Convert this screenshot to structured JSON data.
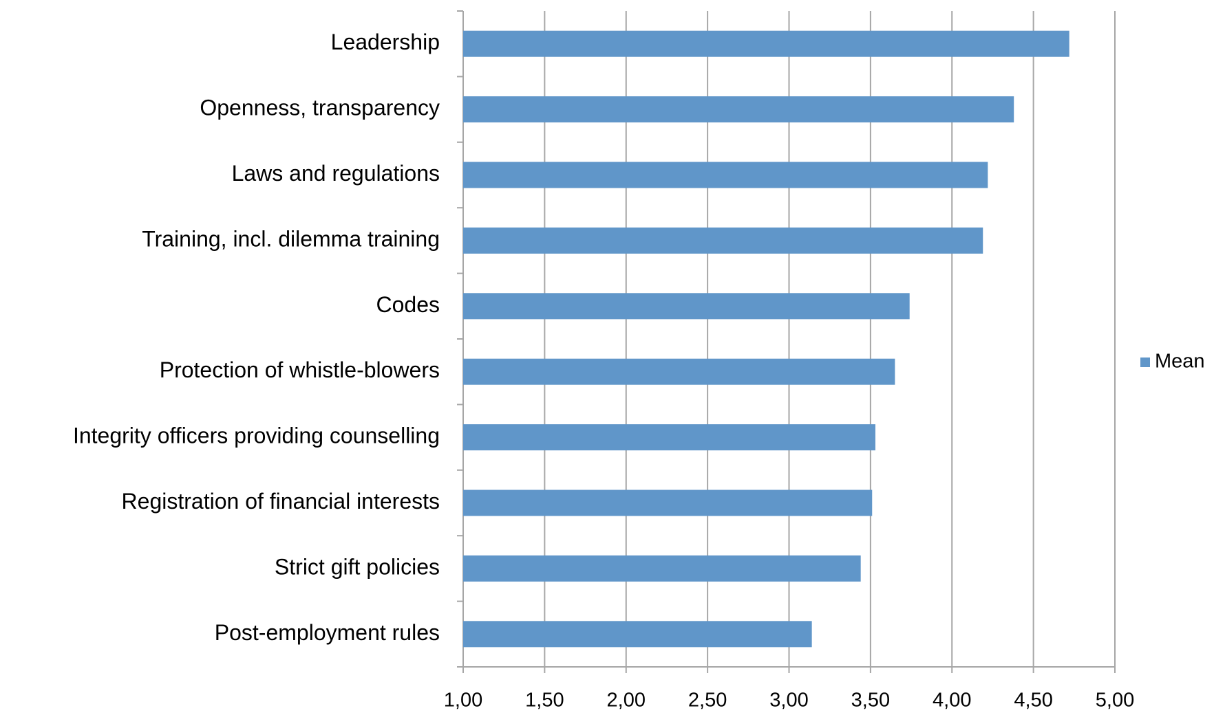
{
  "chart_data": {
    "type": "barh",
    "categories": [
      "Leadership",
      "Openness, transparency",
      "Laws and regulations",
      "Training, incl. dilemma training",
      "Codes",
      "Protection of whistle-blowers",
      "Integrity officers providing counselling",
      "Registration of financial interests",
      "Strict gift policies",
      "Post-employment rules"
    ],
    "series": [
      {
        "name": "Mean",
        "color": "#6096c9",
        "values": [
          4.72,
          4.38,
          4.22,
          4.19,
          3.74,
          3.65,
          3.53,
          3.51,
          3.44,
          3.14
        ]
      }
    ],
    "xlim": [
      1,
      5
    ],
    "xticks": [
      {
        "value": 1,
        "label": "1,00"
      },
      {
        "value": 1.5,
        "label": "1,50"
      },
      {
        "value": 2,
        "label": "2,00"
      },
      {
        "value": 2.5,
        "label": "2,50"
      },
      {
        "value": 3,
        "label": "3,00"
      },
      {
        "value": 3.5,
        "label": "3,50"
      },
      {
        "value": 4,
        "label": "4,00"
      },
      {
        "value": 4.5,
        "label": "4,50"
      },
      {
        "value": 5,
        "label": "5,00"
      }
    ],
    "grid": true,
    "legend": "right"
  }
}
